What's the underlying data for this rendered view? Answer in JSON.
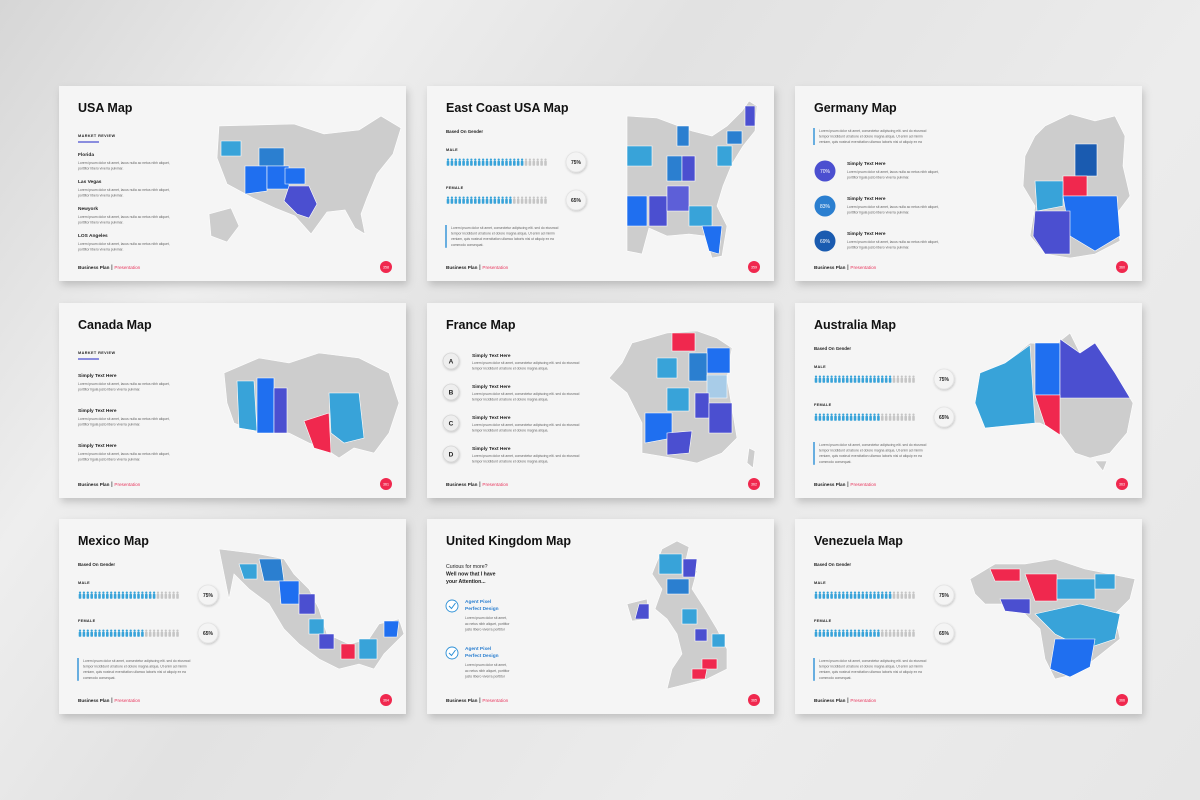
{
  "slides": [
    {
      "title": "USA Map",
      "kicker": "MARKET REVIEW",
      "items": [
        {
          "heading": "Florida",
          "text": [
            "Lorem ipsum dolor sit amet, lacus nulla ac netus nibh aliquet,",
            "porttitor libero viverra pulvinar."
          ]
        },
        {
          "heading": "Las Vegas",
          "text": [
            "Lorem ipsum dolor sit amet, lacus nulla ac netus nibh aliquet,",
            "porttitor libero viverra pulvinar."
          ]
        },
        {
          "heading": "Newyork",
          "text": [
            "Lorem ipsum dolor sit amet, lacus nulla ac netus nibh aliquet,",
            "porttitor libero viverra pulvinar."
          ]
        },
        {
          "heading": "LOS Angeles",
          "text": [
            "Lorem ipsum dolor sit amet, lacus nulla ac netus nibh aliquet,",
            "porttitor libero viverra pulvinar."
          ]
        }
      ],
      "footer": {
        "brand": "Business Plan",
        "section": "Presentation"
      },
      "page": "358"
    },
    {
      "title": "East Coast USA Map",
      "subtitle": "Based On Gender",
      "gender": [
        {
          "label": "MALE",
          "percent": "75%"
        },
        {
          "label": "FEMALE",
          "percent": "65%"
        }
      ],
      "paragraph": [
        "Lorem ipsum dolor sit amet, consectetur adipiscing elit. sed do eiusmod",
        "tempor incididunt ut labore et dolore magna aliqua. Ut enim ad minim",
        "veniam, quis nostrud exercitation ullamco laboris nisi ut aliquip ex ea",
        "commodo consequat."
      ],
      "footer": {
        "brand": "Business Plan",
        "section": "Presentation"
      },
      "page": "359"
    },
    {
      "title": "Germany Map",
      "intro": [
        "Lorem ipsum dolor sit amet, consectetur adipiscing elit. sed do eiusmod",
        "tempor incididunt ut labore et dolore magna aliqua. Ut enim ad minim",
        "veniam, quis nostrud exercitation ullamco laboris nisi ut aliquip ex ea"
      ],
      "items": [
        {
          "badge": "70%",
          "heading": "Simply Text Here",
          "text": [
            "Lorem ipsum dolor sit amet, lacus nulla ac netus nibh aliquet,",
            "porttitor ligula justo libero viverra pulvinar."
          ]
        },
        {
          "badge": "83%",
          "heading": "Simply Text Here",
          "text": [
            "Lorem ipsum dolor sit amet, lacus nulla ac netus nibh aliquet,",
            "porttitor ligula justo libero viverra pulvinar."
          ]
        },
        {
          "badge": "69%",
          "heading": "Simply Text Here",
          "text": [
            "Lorem ipsum dolor sit amet, lacus nulla ac netus nibh aliquet,",
            "porttitor ligula justo libero viverra pulvinar."
          ]
        }
      ],
      "footer": {
        "brand": "Business Plan",
        "section": "Presentation"
      },
      "page": "360"
    },
    {
      "title": "Canada Map",
      "kicker": "MARKET REVIEW",
      "items": [
        {
          "heading": "Simply Text Here",
          "text": [
            "Lorem ipsum dolor sit amet, lacus nulla ac netus nibh aliquet,",
            "porttitor ligula justo libero viverra pulvinar."
          ]
        },
        {
          "heading": "Simply Text Here",
          "text": [
            "Lorem ipsum dolor sit amet, lacus nulla ac netus nibh aliquet,",
            "porttitor ligula justo libero viverra pulvinar."
          ]
        },
        {
          "heading": "Simply Text Here",
          "text": [
            "Lorem ipsum dolor sit amet, lacus nulla ac netus nibh aliquet,",
            "porttitor ligula justo libero viverra pulvinar."
          ]
        }
      ],
      "footer": {
        "brand": "Business Plan",
        "section": "Presentation"
      },
      "page": "361"
    },
    {
      "title": "France Map",
      "items": [
        {
          "letter": "A",
          "heading": "Simply Text Here",
          "text": [
            "Lorem ipsum dolor sit amet, consectetur adipiscing elit. sed do eiusmod",
            "tempor incididunt ut labore et dolore magna aliqua."
          ]
        },
        {
          "letter": "B",
          "heading": "Simply Text Here",
          "text": [
            "Lorem ipsum dolor sit amet, consectetur adipiscing elit. sed do eiusmod",
            "tempor incididunt ut labore et dolore magna aliqua."
          ]
        },
        {
          "letter": "C",
          "heading": "Simply Text Here",
          "text": [
            "Lorem ipsum dolor sit amet, consectetur adipiscing elit. sed do eiusmod",
            "tempor incididunt ut labore et dolore magna aliqua."
          ]
        },
        {
          "letter": "D",
          "heading": "Simply Text Here",
          "text": [
            "Lorem ipsum dolor sit amet, consectetur adipiscing elit. sed do eiusmod",
            "tempor incididunt ut labore et dolore magna aliqua."
          ]
        }
      ],
      "footer": {
        "brand": "Business Plan",
        "section": "Presentation"
      },
      "page": "362"
    },
    {
      "title": "Australia Map",
      "subtitle": "Based On Gender",
      "gender": [
        {
          "label": "MALE",
          "percent": "75%"
        },
        {
          "label": "FEMALE",
          "percent": "65%"
        }
      ],
      "paragraph": [
        "Lorem ipsum dolor sit amet, consectetur adipiscing elit. sed do eiusmod",
        "tempor incididunt ut labore et dolore magna aliqua. Ut enim ad minim",
        "veniam, quis nostrud exercitation ullamco laboris nisi ut aliquip ex ea",
        "commodo consequat."
      ],
      "footer": {
        "brand": "Business Plan",
        "section": "Presentation"
      },
      "page": "363"
    },
    {
      "title": "Mexico Map",
      "subtitle": "Based On Gender",
      "gender": [
        {
          "label": "MALE",
          "percent": "75%"
        },
        {
          "label": "FEMALE",
          "percent": "65%"
        }
      ],
      "paragraph": [
        "Lorem ipsum dolor sit amet, consectetur adipiscing elit. sed do eiusmod",
        "tempor incididunt ut labore et dolore magna aliqua. Ut enim ad minim",
        "veniam, quis nostrud exercitation ullamco laboris nisi ut aliquip ex ea",
        "commodo consequat."
      ],
      "footer": {
        "brand": "Business Plan",
        "section": "Presentation"
      },
      "page": "364"
    },
    {
      "title": "United Kingdom Map",
      "lead": [
        "Curious for more?",
        "Well now that I have",
        "your Attention..."
      ],
      "items": [
        {
          "heading": [
            "Agent Pixel",
            "Perfect Design"
          ],
          "text": [
            "Lorem ipsum dolor sit amet,",
            "ac netus nibh aliquet, porttitor",
            "justo libero viverra porttitor"
          ]
        },
        {
          "heading": [
            "Agent Pixel",
            "Perfect Design"
          ],
          "text": [
            "Lorem ipsum dolor sit amet,",
            "ac netus nibh aliquet, porttitor",
            "justo libero viverra porttitor"
          ]
        }
      ],
      "footer": {
        "brand": "Business Plan",
        "section": "Presentation"
      },
      "page": "365"
    },
    {
      "title": "Venezuela Map",
      "subtitle": "Based On Gender",
      "gender": [
        {
          "label": "MALE",
          "percent": "75%"
        },
        {
          "label": "FEMALE",
          "percent": "65%"
        }
      ],
      "paragraph": [
        "Lorem ipsum dolor sit amet, consectetur adipiscing elit. sed do eiusmod",
        "tempor incididunt ut labore et dolore magna aliqua. Ut enim ad minim",
        "veniam, quis nostrud exercitation ullamco laboris nisi ut aliquip ex ea",
        "commodo consequat."
      ],
      "footer": {
        "brand": "Business Plan",
        "section": "Presentation"
      },
      "page": "366"
    }
  ]
}
